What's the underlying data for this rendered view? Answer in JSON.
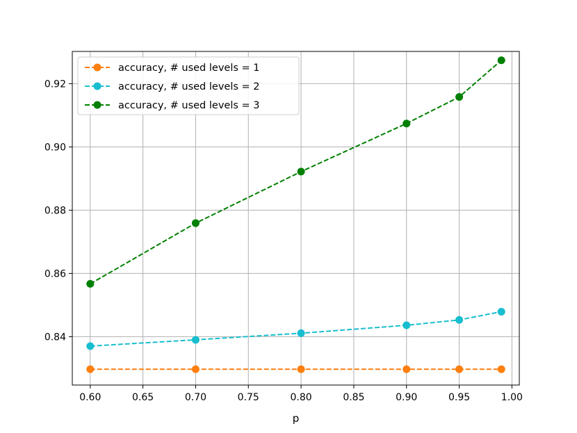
{
  "chart_data": {
    "type": "line",
    "title": "",
    "xlabel": "p",
    "ylabel": "",
    "xlim": [
      0.583,
      1.007
    ],
    "ylim": [
      0.8247,
      0.9302
    ],
    "xticks": [
      0.6,
      0.65,
      0.7,
      0.75,
      0.8,
      0.85,
      0.9,
      0.95,
      1.0
    ],
    "xtick_labels": [
      "0.60",
      "0.65",
      "0.70",
      "0.75",
      "0.80",
      "0.85",
      "0.90",
      "0.95",
      "1.00"
    ],
    "yticks": [
      0.84,
      0.86,
      0.88,
      0.9,
      0.92
    ],
    "ytick_labels": [
      "0.84",
      "0.86",
      "0.88",
      "0.90",
      "0.92"
    ],
    "grid": true,
    "legend_position": "top-left",
    "x": [
      0.6,
      0.7,
      0.8,
      0.9,
      0.95,
      0.99
    ],
    "series": [
      {
        "name": "accuracy, # used levels = 1",
        "color": "#ff7f0e",
        "values": [
          0.8297,
          0.8297,
          0.8297,
          0.8297,
          0.8297,
          0.8297
        ]
      },
      {
        "name": "accuracy, # used levels = 2",
        "color": "#17becf",
        "values": [
          0.837,
          0.839,
          0.8411,
          0.8436,
          0.8453,
          0.8479
        ]
      },
      {
        "name": "accuracy, # used levels = 3",
        "color": "#008000",
        "values": [
          0.8567,
          0.8759,
          0.8922,
          0.9074,
          0.9158,
          0.9274
        ]
      }
    ]
  }
}
